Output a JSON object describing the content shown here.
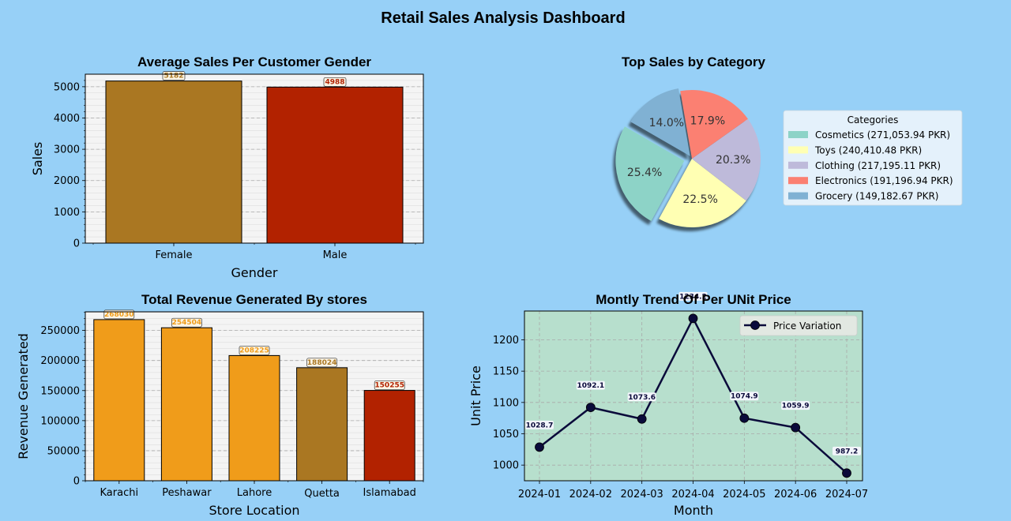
{
  "dashboard": {
    "title": "Retail Sales Analysis Dashboard",
    "background": "#97d0f7"
  },
  "chart_data": [
    {
      "type": "bar",
      "title": "Average Sales Per Customer Gender",
      "xlabel": "Gender",
      "ylabel": "Sales",
      "categories": [
        "Female",
        "Male"
      ],
      "values": [
        5182,
        4988
      ],
      "data_labels": [
        "5182",
        "4988"
      ],
      "colors": [
        "#aa7722",
        "#b22200"
      ],
      "ylim": [
        0,
        5400
      ],
      "yticks": [
        0,
        1000,
        2000,
        3000,
        4000,
        5000
      ],
      "ytick_labels": [
        "0",
        "1000",
        "2000",
        "3000",
        "4000",
        "5000"
      ],
      "grid": true,
      "plot_background": "#f4f4f4"
    },
    {
      "type": "pie",
      "title": "Top Sales by Category",
      "legend_title": "Categories",
      "legend_position": "right",
      "categories": [
        "Cosmetics",
        "Toys",
        "Clothing",
        "Electronics",
        "Grocery"
      ],
      "values": [
        271053.94,
        240410.48,
        217195.11,
        191196.94,
        149182.67
      ],
      "legend_labels": [
        "Cosmetics (271,053.94 PKR)",
        "Toys (240,410.48 PKR)",
        "Clothing (217,195.11 PKR)",
        "Electronics (191,196.94 PKR)",
        "Grocery (149,182.67 PKR)"
      ],
      "percent_labels": [
        "25.4%",
        "22.5%",
        "20.3%",
        "17.9%",
        "14.0%"
      ],
      "colors": [
        "#8dd3c7",
        "#ffffb3",
        "#bebada",
        "#fb8072",
        "#80b1d3"
      ],
      "exploded": [
        "Cosmetics",
        "Grocery"
      ],
      "shadow": true
    },
    {
      "type": "bar",
      "title": "Total Revenue Generated By stores",
      "xlabel": "Store Location",
      "ylabel": "Revenue Generated",
      "categories": [
        "Karachi",
        "Peshawar",
        "Lahore",
        "Quetta",
        "Islamabad"
      ],
      "values": [
        268030,
        254504,
        208225,
        188024,
        150255
      ],
      "data_labels": [
        "268030",
        "254504",
        "208225",
        "188024",
        "150255"
      ],
      "colors": [
        "#f09c1a",
        "#f09c1a",
        "#f09c1a",
        "#aa7722",
        "#b22200"
      ],
      "ylim": [
        0,
        281000
      ],
      "yticks": [
        0,
        50000,
        100000,
        150000,
        200000,
        250000
      ],
      "ytick_labels": [
        "0",
        "50000",
        "100000",
        "150000",
        "200000",
        "250000"
      ],
      "grid": true,
      "plot_background": "#f4f4f4"
    },
    {
      "type": "line",
      "title": "Montly Trend Of Per UNit Price",
      "xlabel": "Month",
      "ylabel": "Unit Price",
      "x": [
        "2024-01",
        "2024-02",
        "2024-03",
        "2024-04",
        "2024-05",
        "2024-06",
        "2024-07"
      ],
      "series": [
        {
          "name": "Price Variation",
          "values": [
            1028.7,
            1092.1,
            1073.6,
            1234.2,
            1074.9,
            1059.9,
            987.2
          ],
          "data_labels": [
            "1028.7",
            "1092.1",
            "1073.6",
            "1234.2",
            "1074.9",
            "1059.9",
            "987.2"
          ],
          "color": "#0a0a3a"
        }
      ],
      "ylim": [
        975,
        1246
      ],
      "yticks": [
        1000,
        1050,
        1100,
        1150,
        1200
      ],
      "ytick_labels": [
        "1000",
        "1050",
        "1100",
        "1150",
        "1200"
      ],
      "grid": true,
      "legend_position": "top-right",
      "plot_background": "#b7dfcd"
    }
  ]
}
